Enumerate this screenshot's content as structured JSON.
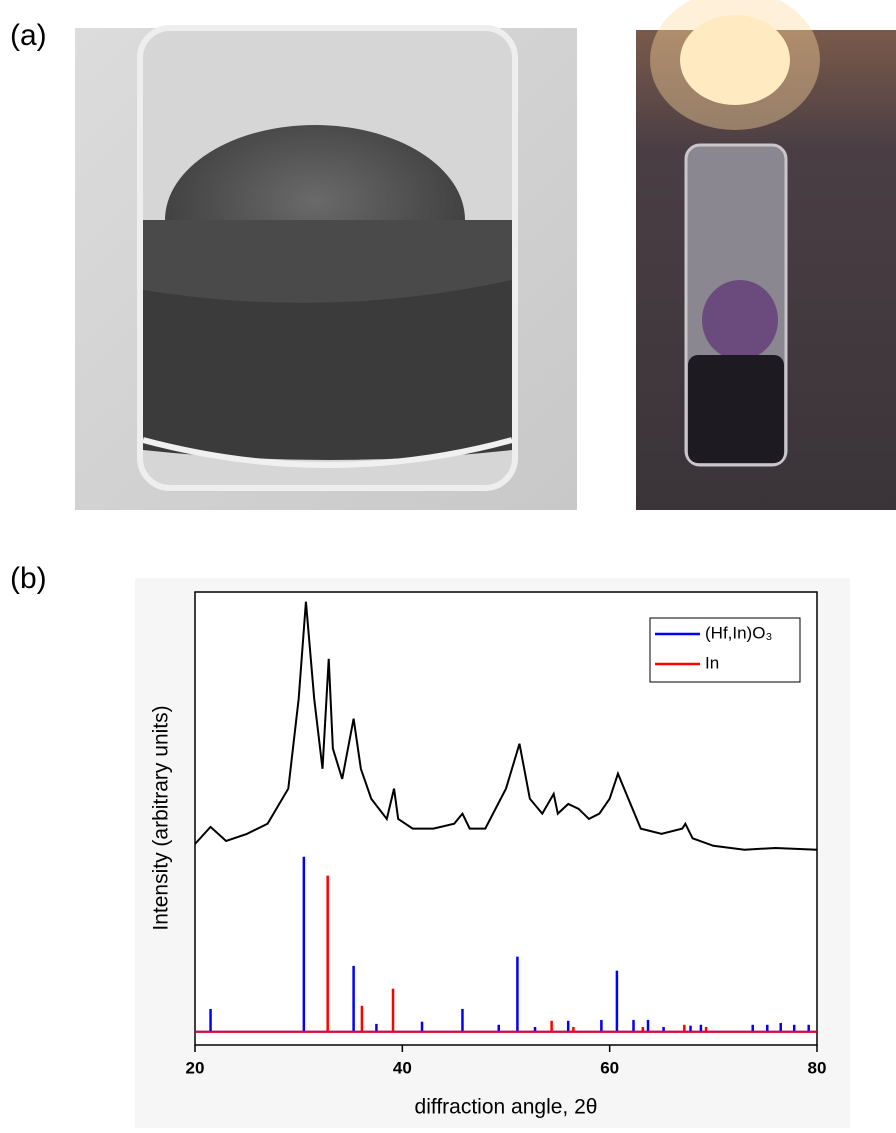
{
  "panels": {
    "a": {
      "label": "(a)"
    },
    "b": {
      "label": "(b)"
    }
  },
  "chart_data": {
    "type": "line",
    "xlabel": "diffraction angle, 2θ",
    "ylabel": "Intensity (arbitrary units)",
    "xlim": [
      20,
      80
    ],
    "xticks": [
      20,
      40,
      60,
      80
    ],
    "ylim": [
      -3,
      100
    ],
    "legend": "top-right",
    "series": [
      {
        "type": "line",
        "color": "#000000",
        "x": [
          20,
          21.5,
          23,
          25,
          27,
          29,
          30,
          30.7,
          31.5,
          32.3,
          32.9,
          33.3,
          34.2,
          35.3,
          36,
          37,
          38.5,
          39.2,
          39.6,
          41,
          43,
          45,
          45.8,
          46.5,
          48,
          50,
          51.3,
          52.3,
          53.5,
          54.6,
          55,
          56,
          57,
          58,
          59,
          60,
          60.8,
          61.8,
          63,
          65,
          67,
          67.3,
          68,
          70,
          73,
          76,
          80
        ],
        "values": [
          42.7,
          46.6,
          43.4,
          45.0,
          47.3,
          55.3,
          75.7,
          97.8,
          75.7,
          59.8,
          84.8,
          64.4,
          57.5,
          71.2,
          59.8,
          53.0,
          48.4,
          55.3,
          48.4,
          46.2,
          46.2,
          47.3,
          49.6,
          46.2,
          46.2,
          55.3,
          65.5,
          53.0,
          49.6,
          54.1,
          49.6,
          51.8,
          50.7,
          48.4,
          49.6,
          53.0,
          58.7,
          53.0,
          46.2,
          45.0,
          46.2,
          47.3,
          44.0,
          42.3,
          41.4,
          41.8,
          41.4
        ]
      },
      {
        "type": "stick",
        "name": "(Hf,In)O₃",
        "color": "#0000ff",
        "x": [
          21.5,
          30.5,
          35.3,
          37.5,
          41.9,
          45.8,
          49.3,
          51.1,
          52.8,
          56,
          59.2,
          60.7,
          62.3,
          63.7,
          65.2,
          67.8,
          68.8,
          73.8,
          75.2,
          76.5,
          77.8,
          79.2
        ],
        "values": [
          5.2,
          39.8,
          15.0,
          1.8,
          2.3,
          5.2,
          1.6,
          17.1,
          1.1,
          2.5,
          2.7,
          13.9,
          2.7,
          2.7,
          1.1,
          1.4,
          1.6,
          1.6,
          1.6,
          2.0,
          1.6,
          1.6
        ]
      },
      {
        "type": "stick",
        "name": "In",
        "color": "#ff0000",
        "x": [
          32.8,
          36.1,
          39.1,
          54.4,
          56.5,
          63.2,
          67.2,
          69.3
        ],
        "values": [
          35.5,
          5.9,
          9.8,
          2.5,
          1.1,
          1.1,
          1.6,
          1.1
        ]
      }
    ]
  }
}
